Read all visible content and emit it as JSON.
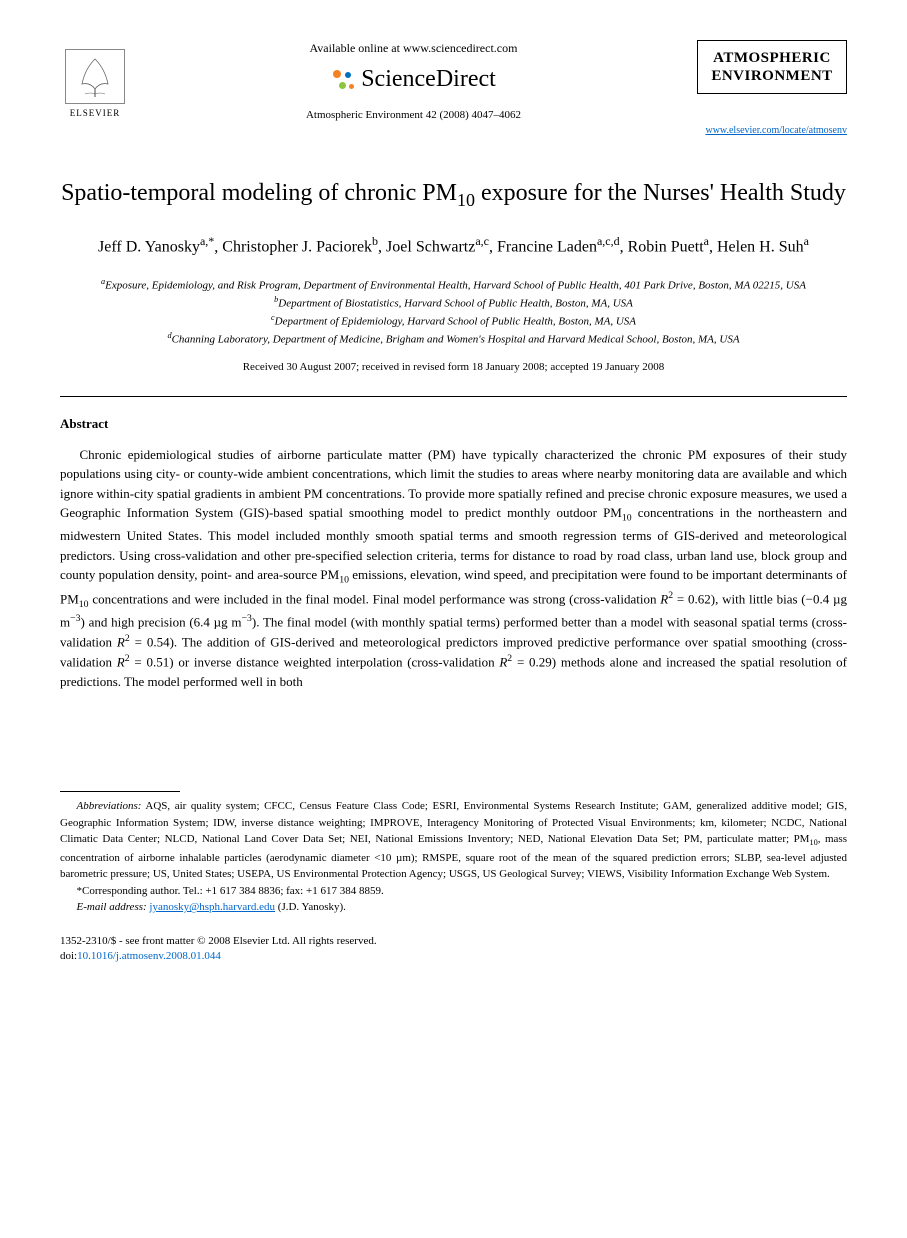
{
  "header": {
    "elsevier_label": "ELSEVIER",
    "available_online": "Available online at www.sciencedirect.com",
    "sciencedirect_label": "ScienceDirect",
    "journal_ref": "Atmospheric Environment 42 (2008) 4047–4062",
    "journal_name_line1": "ATMOSPHERIC",
    "journal_name_line2": "ENVIRONMENT",
    "journal_link": "www.elsevier.com/locate/atmosenv"
  },
  "title_parts": {
    "pre": "Spatio-temporal modeling of chronic PM",
    "sub": "10",
    "post": " exposure for the Nurses' Health Study"
  },
  "authors_html": "Jeff D. Yanosky<sup>a,*</sup>, Christopher J. Paciorek<sup>b</sup>, Joel Schwartz<sup>a,c</sup>, Francine Laden<sup>a,c,d</sup>, Robin Puett<sup>a</sup>, Helen H. Suh<sup>a</sup>",
  "affiliations": [
    "<sup>a</sup>Exposure, Epidemiology, and Risk Program, Department of Environmental Health, Harvard School of Public Health, 401 Park Drive, Boston, MA 02215, USA",
    "<sup>b</sup>Department of Biostatistics, Harvard School of Public Health, Boston, MA, USA",
    "<sup>c</sup>Department of Epidemiology, Harvard School of Public Health, Boston, MA, USA",
    "<sup>d</sup>Channing Laboratory, Department of Medicine, Brigham and Women's Hospital and Harvard Medical School, Boston, MA, USA"
  ],
  "dates": "Received 30 August 2007; received in revised form 18 January 2008; accepted 19 January 2008",
  "abstract": {
    "heading": "Abstract",
    "body_html": "Chronic epidemiological studies of airborne particulate matter (PM) have typically characterized the chronic PM exposures of their study populations using city- or county-wide ambient concentrations, which limit the studies to areas where nearby monitoring data are available and which ignore within-city spatial gradients in ambient PM concentrations. To provide more spatially refined and precise chronic exposure measures, we used a Geographic Information System (GIS)-based spatial smoothing model to predict monthly outdoor PM<sub>10</sub> concentrations in the northeastern and midwestern United States. This model included monthly smooth spatial terms and smooth regression terms of GIS-derived and meteorological predictors. Using cross-validation and other pre-specified selection criteria, terms for distance to road by road class, urban land use, block group and county population density, point- and area-source PM<sub>10</sub> emissions, elevation, wind speed, and precipitation were found to be important determinants of PM<sub>10</sub> concentrations and were included in the final model. Final model performance was strong (cross-validation <i>R</i><sup>2</sup> = 0.62), with little bias (−0.4 µg m<sup>−3</sup>) and high precision (6.4 µg m<sup>−3</sup>). The final model (with monthly spatial terms) performed better than a model with seasonal spatial terms (cross-validation <i>R</i><sup>2</sup> = 0.54). The addition of GIS-derived and meteorological predictors improved predictive performance over spatial smoothing (cross-validation <i>R</i><sup>2</sup> = 0.51) or inverse distance weighted interpolation (cross-validation <i>R</i><sup>2</sup> = 0.29) methods alone and increased the spatial resolution of predictions. The model performed well in both"
  },
  "footnotes": {
    "abbreviations_html": "<i>Abbreviations:</i> AQS, air quality system; CFCC, Census Feature Class Code; ESRI, Environmental Systems Research Institute; GAM, generalized additive model; GIS, Geographic Information System; IDW, inverse distance weighting; IMPROVE, Interagency Monitoring of Protected Visual Environments; km, kilometer; NCDC, National Climatic Data Center; NLCD, National Land Cover Data Set; NEI, National Emissions Inventory; NED, National Elevation Data Set; PM, particulate matter; PM<sub>10</sub>, mass concentration of airborne inhalable particles (aerodynamic diameter &lt;10 µm); RMSPE, square root of the mean of the squared prediction errors; SLBP, sea-level adjusted barometric pressure; US, United States; USEPA, US Environmental Protection Agency; USGS, US Geological Survey; VIEWS, Visibility Information Exchange Web System.",
    "corresponding": "*Corresponding author. Tel.: +1 617 384 8836; fax: +1 617 384 8859.",
    "email_label": "E-mail address:",
    "email": "jyanosky@hsph.harvard.edu",
    "email_suffix": "(J.D. Yanosky)."
  },
  "copyright": {
    "line1": "1352-2310/$ - see front matter © 2008 Elsevier Ltd. All rights reserved.",
    "doi_prefix": "doi:",
    "doi": "10.1016/j.atmosenv.2008.01.044"
  },
  "colors": {
    "text": "#000000",
    "link": "#0066cc",
    "sd_orange": "#f58220",
    "sd_blue": "#0071bc",
    "sd_green": "#8cc63f"
  }
}
